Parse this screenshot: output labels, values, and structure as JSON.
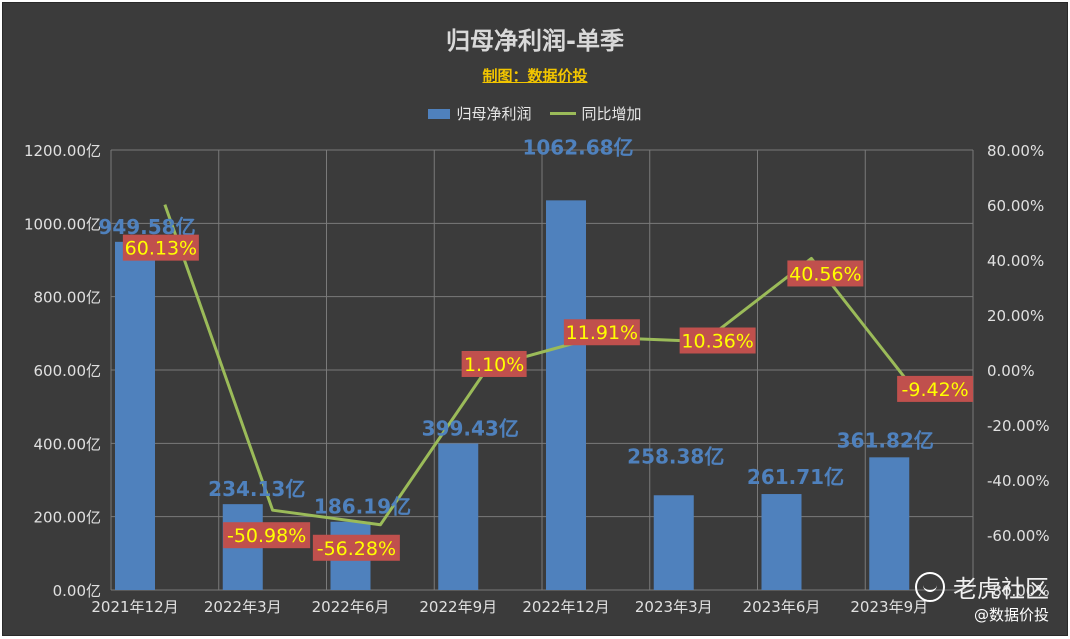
{
  "chart_data": {
    "type": "bar",
    "title": "归母净利润-单季",
    "subtitle": "制图：数据价投",
    "categories": [
      "2021年12月",
      "2022年3月",
      "2022年6月",
      "2022年9月",
      "2022年12月",
      "2023年3月",
      "2023年6月",
      "2023年9月"
    ],
    "series": [
      {
        "name": "归母净利润",
        "type": "bar",
        "axis": "left",
        "values": [
          949.58,
          234.13,
          186.19,
          399.43,
          1062.68,
          258.38,
          261.71,
          361.82
        ],
        "labels": [
          "949.58亿",
          "234.13亿",
          "186.19亿",
          "399.43亿",
          "1062.68亿",
          "258.38亿",
          "261.71亿",
          "361.82亿"
        ],
        "color": "#4f81bd"
      },
      {
        "name": "同比增加",
        "type": "line",
        "axis": "right",
        "values": [
          60.13,
          -50.98,
          -56.28,
          1.1,
          11.91,
          10.36,
          40.56,
          -9.42
        ],
        "labels": [
          "60.13%",
          "-50.98%",
          "-56.28%",
          "1.10%",
          "11.91%",
          "10.36%",
          "40.56%",
          "-9.42%"
        ],
        "color": "#9bbb59"
      }
    ],
    "y_left": {
      "lim": [
        0,
        1200
      ],
      "ticks": [
        "0.00亿",
        "200.00亿",
        "400.00亿",
        "600.00亿",
        "800.00亿",
        "1000.00亿",
        "1200.00亿"
      ]
    },
    "y_right": {
      "lim": [
        -80,
        80
      ],
      "ticks": [
        "-80.00%",
        "-60.00%",
        "-40.00%",
        "-20.00%",
        "0.00%",
        "20.00%",
        "40.00%",
        "60.00%",
        "80.00%"
      ]
    },
    "grid": true,
    "legend_position": "top-center",
    "colors": {
      "background": "#3b3b3b",
      "bar_label": "#4f81bd",
      "line_label_text": "#ffff00",
      "line_label_box": "#c0504d"
    }
  },
  "watermark": {
    "brand": "老虎社区",
    "author": "@数据价投"
  }
}
